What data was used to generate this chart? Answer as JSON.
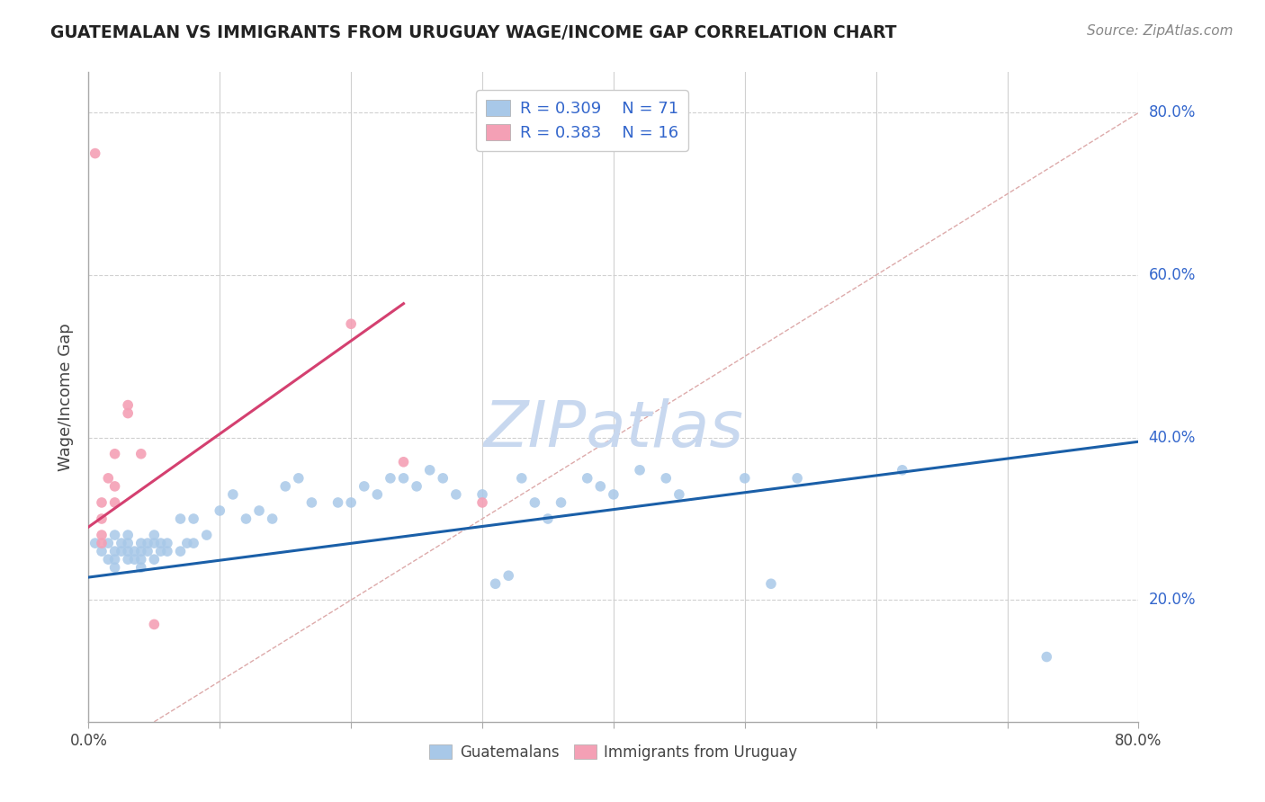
{
  "title": "GUATEMALAN VS IMMIGRANTS FROM URUGUAY WAGE/INCOME GAP CORRELATION CHART",
  "source_text": "Source: ZipAtlas.com",
  "ylabel": "Wage/Income Gap",
  "xlim": [
    0.0,
    0.8
  ],
  "ylim": [
    0.05,
    0.85
  ],
  "yticks_right": [
    0.2,
    0.4,
    0.6,
    0.8
  ],
  "ytick_right_labels": [
    "20.0%",
    "40.0%",
    "60.0%",
    "80.0%"
  ],
  "R_blue": 0.309,
  "N_blue": 71,
  "R_pink": 0.383,
  "N_pink": 16,
  "color_blue": "#a8c8e8",
  "color_pink": "#f4a0b5",
  "color_blue_line": "#1a5fa8",
  "color_pink_line": "#d44070",
  "blue_scatter_x": [
    0.005,
    0.01,
    0.015,
    0.015,
    0.02,
    0.02,
    0.02,
    0.02,
    0.025,
    0.025,
    0.03,
    0.03,
    0.03,
    0.03,
    0.035,
    0.035,
    0.04,
    0.04,
    0.04,
    0.04,
    0.045,
    0.045,
    0.05,
    0.05,
    0.05,
    0.055,
    0.055,
    0.06,
    0.06,
    0.07,
    0.07,
    0.075,
    0.08,
    0.08,
    0.09,
    0.1,
    0.11,
    0.12,
    0.13,
    0.14,
    0.15,
    0.16,
    0.17,
    0.19,
    0.2,
    0.21,
    0.22,
    0.23,
    0.24,
    0.25,
    0.26,
    0.27,
    0.28,
    0.3,
    0.31,
    0.32,
    0.33,
    0.34,
    0.35,
    0.36,
    0.38,
    0.39,
    0.4,
    0.42,
    0.44,
    0.45,
    0.5,
    0.52,
    0.54,
    0.62,
    0.73
  ],
  "blue_scatter_y": [
    0.27,
    0.26,
    0.27,
    0.25,
    0.28,
    0.26,
    0.25,
    0.24,
    0.27,
    0.26,
    0.28,
    0.27,
    0.26,
    0.25,
    0.26,
    0.25,
    0.27,
    0.26,
    0.25,
    0.24,
    0.27,
    0.26,
    0.28,
    0.27,
    0.25,
    0.27,
    0.26,
    0.27,
    0.26,
    0.3,
    0.26,
    0.27,
    0.3,
    0.27,
    0.28,
    0.31,
    0.33,
    0.3,
    0.31,
    0.3,
    0.34,
    0.35,
    0.32,
    0.32,
    0.32,
    0.34,
    0.33,
    0.35,
    0.35,
    0.34,
    0.36,
    0.35,
    0.33,
    0.33,
    0.22,
    0.23,
    0.35,
    0.32,
    0.3,
    0.32,
    0.35,
    0.34,
    0.33,
    0.36,
    0.35,
    0.33,
    0.35,
    0.22,
    0.35,
    0.36,
    0.13
  ],
  "pink_scatter_x": [
    0.005,
    0.01,
    0.01,
    0.01,
    0.01,
    0.015,
    0.02,
    0.02,
    0.02,
    0.03,
    0.03,
    0.04,
    0.05,
    0.2,
    0.24,
    0.3
  ],
  "pink_scatter_y": [
    0.75,
    0.32,
    0.3,
    0.28,
    0.27,
    0.35,
    0.38,
    0.34,
    0.32,
    0.44,
    0.43,
    0.38,
    0.17,
    0.54,
    0.37,
    0.32
  ],
  "blue_line_x": [
    0.0,
    0.8
  ],
  "blue_line_y": [
    0.228,
    0.395
  ],
  "pink_line_x": [
    0.0,
    0.24
  ],
  "pink_line_y": [
    0.29,
    0.565
  ],
  "diag_line_x": [
    0.05,
    0.8
  ],
  "diag_line_y": [
    0.05,
    0.8
  ],
  "background_color": "#ffffff",
  "grid_color": "#d0d0d0",
  "title_color": "#222222",
  "source_color": "#888888",
  "legend_color": "#3366cc",
  "watermark_color": "#c8d8ef",
  "watermark_text": "ZIPatlas"
}
